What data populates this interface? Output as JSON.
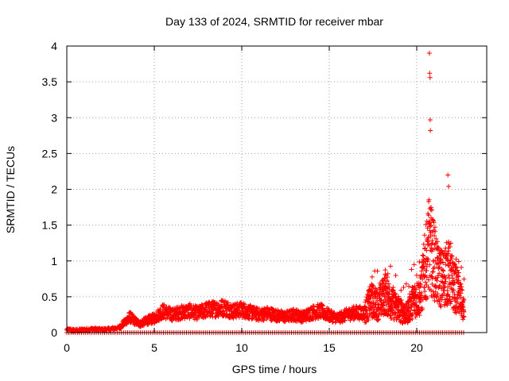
{
  "chart_data": {
    "type": "scatter",
    "title": "Day 133 of 2024, SRMTID for receiver mbar",
    "xlabel": "GPS time / hours",
    "ylabel": "SRMTID / TECUs",
    "xlim": [
      0,
      24
    ],
    "ylim": [
      0,
      4
    ],
    "xticks": [
      0,
      5,
      10,
      15,
      20
    ],
    "xtick_labels": [
      "0",
      "5",
      "10",
      "15",
      "20"
    ],
    "yticks": [
      0,
      0.5,
      1,
      1.5,
      2,
      2.5,
      3,
      3.5,
      4
    ],
    "ytick_labels": [
      "0",
      "0.5",
      "1",
      "1.5",
      "2",
      "2.5",
      "3",
      "3.5",
      "4"
    ],
    "grid": true,
    "marker": "+",
    "color": "#ff0000",
    "series": [
      {
        "name": "SRMTID",
        "description": "approximate envelope of dense scatter (x in hours, y in TECU)",
        "x": [
          0.0,
          0.5,
          1.0,
          1.5,
          2.0,
          2.5,
          3.0,
          3.3,
          3.6,
          3.9,
          4.2,
          4.5,
          5.0,
          5.5,
          6.0,
          6.5,
          7.0,
          7.5,
          8.0,
          8.5,
          9.0,
          9.5,
          10.0,
          10.5,
          11.0,
          11.5,
          12.0,
          12.5,
          13.0,
          13.5,
          14.0,
          14.5,
          15.0,
          15.5,
          16.0,
          16.5,
          17.0,
          17.4,
          17.8,
          18.2,
          18.6,
          19.0,
          19.4,
          19.8,
          20.2,
          20.5,
          20.7,
          20.9,
          21.2,
          21.5,
          21.8,
          22.1,
          22.4,
          22.7
        ],
        "y": [
          0.04,
          0.03,
          0.04,
          0.05,
          0.04,
          0.05,
          0.07,
          0.14,
          0.22,
          0.16,
          0.12,
          0.16,
          0.2,
          0.3,
          0.25,
          0.28,
          0.3,
          0.27,
          0.32,
          0.33,
          0.35,
          0.3,
          0.32,
          0.28,
          0.25,
          0.27,
          0.24,
          0.22,
          0.25,
          0.22,
          0.28,
          0.3,
          0.24,
          0.2,
          0.25,
          0.28,
          0.27,
          0.45,
          0.38,
          0.55,
          0.4,
          0.32,
          0.25,
          0.45,
          0.5,
          0.95,
          1.2,
          1.1,
          0.8,
          0.75,
          0.85,
          0.65,
          0.55,
          0.3
        ]
      }
    ],
    "outliers": {
      "x": [
        20.72,
        20.74,
        20.76,
        20.77,
        20.78,
        20.68,
        20.82,
        20.9,
        21.78,
        21.82
      ],
      "y": [
        3.9,
        3.62,
        3.56,
        2.97,
        2.82,
        1.83,
        1.6,
        1.58,
        2.2,
        2.04
      ]
    }
  }
}
